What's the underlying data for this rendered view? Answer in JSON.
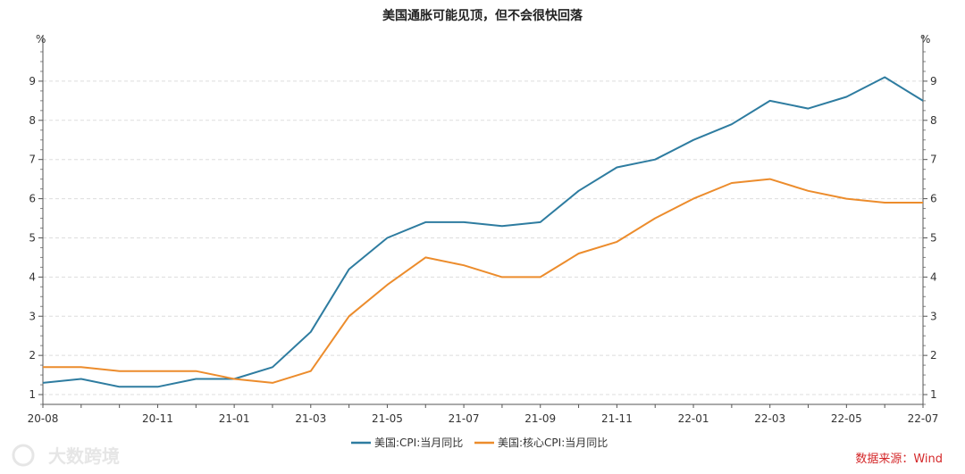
{
  "chart_data": {
    "type": "line",
    "title": "美国通胀可能见顶，但不会很快回落",
    "y_unit_left": "%",
    "y_unit_right": "%",
    "ylim": [
      0.75,
      9.75
    ],
    "yticks": [
      1,
      2,
      3,
      4,
      5,
      6,
      7,
      8,
      9
    ],
    "grid": true,
    "x": [
      "20-08",
      "20-09",
      "20-10",
      "20-11",
      "20-12",
      "21-01",
      "21-02",
      "21-03",
      "21-04",
      "21-05",
      "21-06",
      "21-07",
      "21-08",
      "21-09",
      "21-10",
      "21-11",
      "21-12",
      "22-01",
      "22-02",
      "22-03",
      "22-04",
      "22-05",
      "22-06",
      "22-07"
    ],
    "xtick_labels": [
      "20-08",
      "20-11",
      "21-01",
      "21-03",
      "21-05",
      "21-07",
      "21-09",
      "21-11",
      "22-01",
      "22-03",
      "22-05",
      "22-07"
    ],
    "series": [
      {
        "name": "美国:CPI:当月同比",
        "color": "#2e7ca0",
        "values": [
          1.3,
          1.4,
          1.2,
          1.2,
          1.4,
          1.4,
          1.7,
          2.6,
          4.2,
          5.0,
          5.4,
          5.4,
          5.3,
          5.4,
          6.2,
          6.8,
          7.0,
          7.5,
          7.9,
          8.5,
          8.3,
          8.6,
          9.1,
          8.5
        ]
      },
      {
        "name": "美国:核心CPI:当月同比",
        "color": "#ec8c2c",
        "values": [
          1.7,
          1.7,
          1.6,
          1.6,
          1.6,
          1.4,
          1.3,
          1.6,
          3.0,
          3.8,
          4.5,
          4.3,
          4.0,
          4.0,
          4.6,
          4.9,
          5.5,
          6.0,
          6.4,
          6.5,
          6.2,
          6.0,
          5.9,
          5.9
        ]
      }
    ],
    "legend_position": "bottom-center"
  },
  "source": "数据来源：Wind",
  "watermark": "大数跨境"
}
